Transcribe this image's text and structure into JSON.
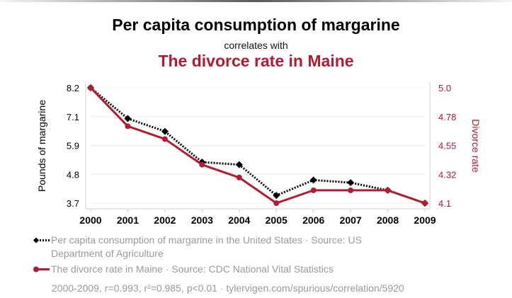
{
  "topline": "",
  "chart_data": {
    "type": "line",
    "title": "Per capita consumption of margarine",
    "subtitle": "correlates with",
    "title2": "The divorce rate in Maine",
    "x": [
      "2000",
      "2001",
      "2002",
      "2003",
      "2004",
      "2005",
      "2006",
      "2007",
      "2008",
      "2009"
    ],
    "left_axis": {
      "label": "Pounds of margarine",
      "ticks": [
        "8.2",
        "7.1",
        "5.9",
        "4.8",
        "3.7"
      ],
      "range": [
        3.7,
        8.2
      ]
    },
    "right_axis": {
      "label": "Divorce rate",
      "ticks": [
        "5.0",
        "4.78",
        "4.55",
        "4.32",
        "4.1"
      ],
      "range": [
        4.1,
        5.0
      ]
    },
    "series": [
      {
        "name": "Per capita consumption of margarine in the United States",
        "axis": "left",
        "color": "#000000",
        "style": "dotted",
        "marker": "diamond",
        "values": [
          8.2,
          7.0,
          6.5,
          5.3,
          5.2,
          4.0,
          4.6,
          4.5,
          4.2,
          3.7
        ]
      },
      {
        "name": "The divorce rate in Maine",
        "axis": "right",
        "color": "#b01c32",
        "style": "solid",
        "marker": "circle",
        "values": [
          5.0,
          4.7,
          4.6,
          4.4,
          4.3,
          4.1,
          4.2,
          4.2,
          4.2,
          4.1
        ]
      }
    ],
    "grid": "horizontal"
  },
  "legend": {
    "item1": "Per capita consumption of margarine in the United States · Source: US Department of Agriculture",
    "item2": "The divorce rate in Maine · Source: CDC National Vital Statistics"
  },
  "footer": "2000-2009, r=0.993, r²=0.985, p<0.01 · tylervigen.com/spurious/correlation/5920"
}
